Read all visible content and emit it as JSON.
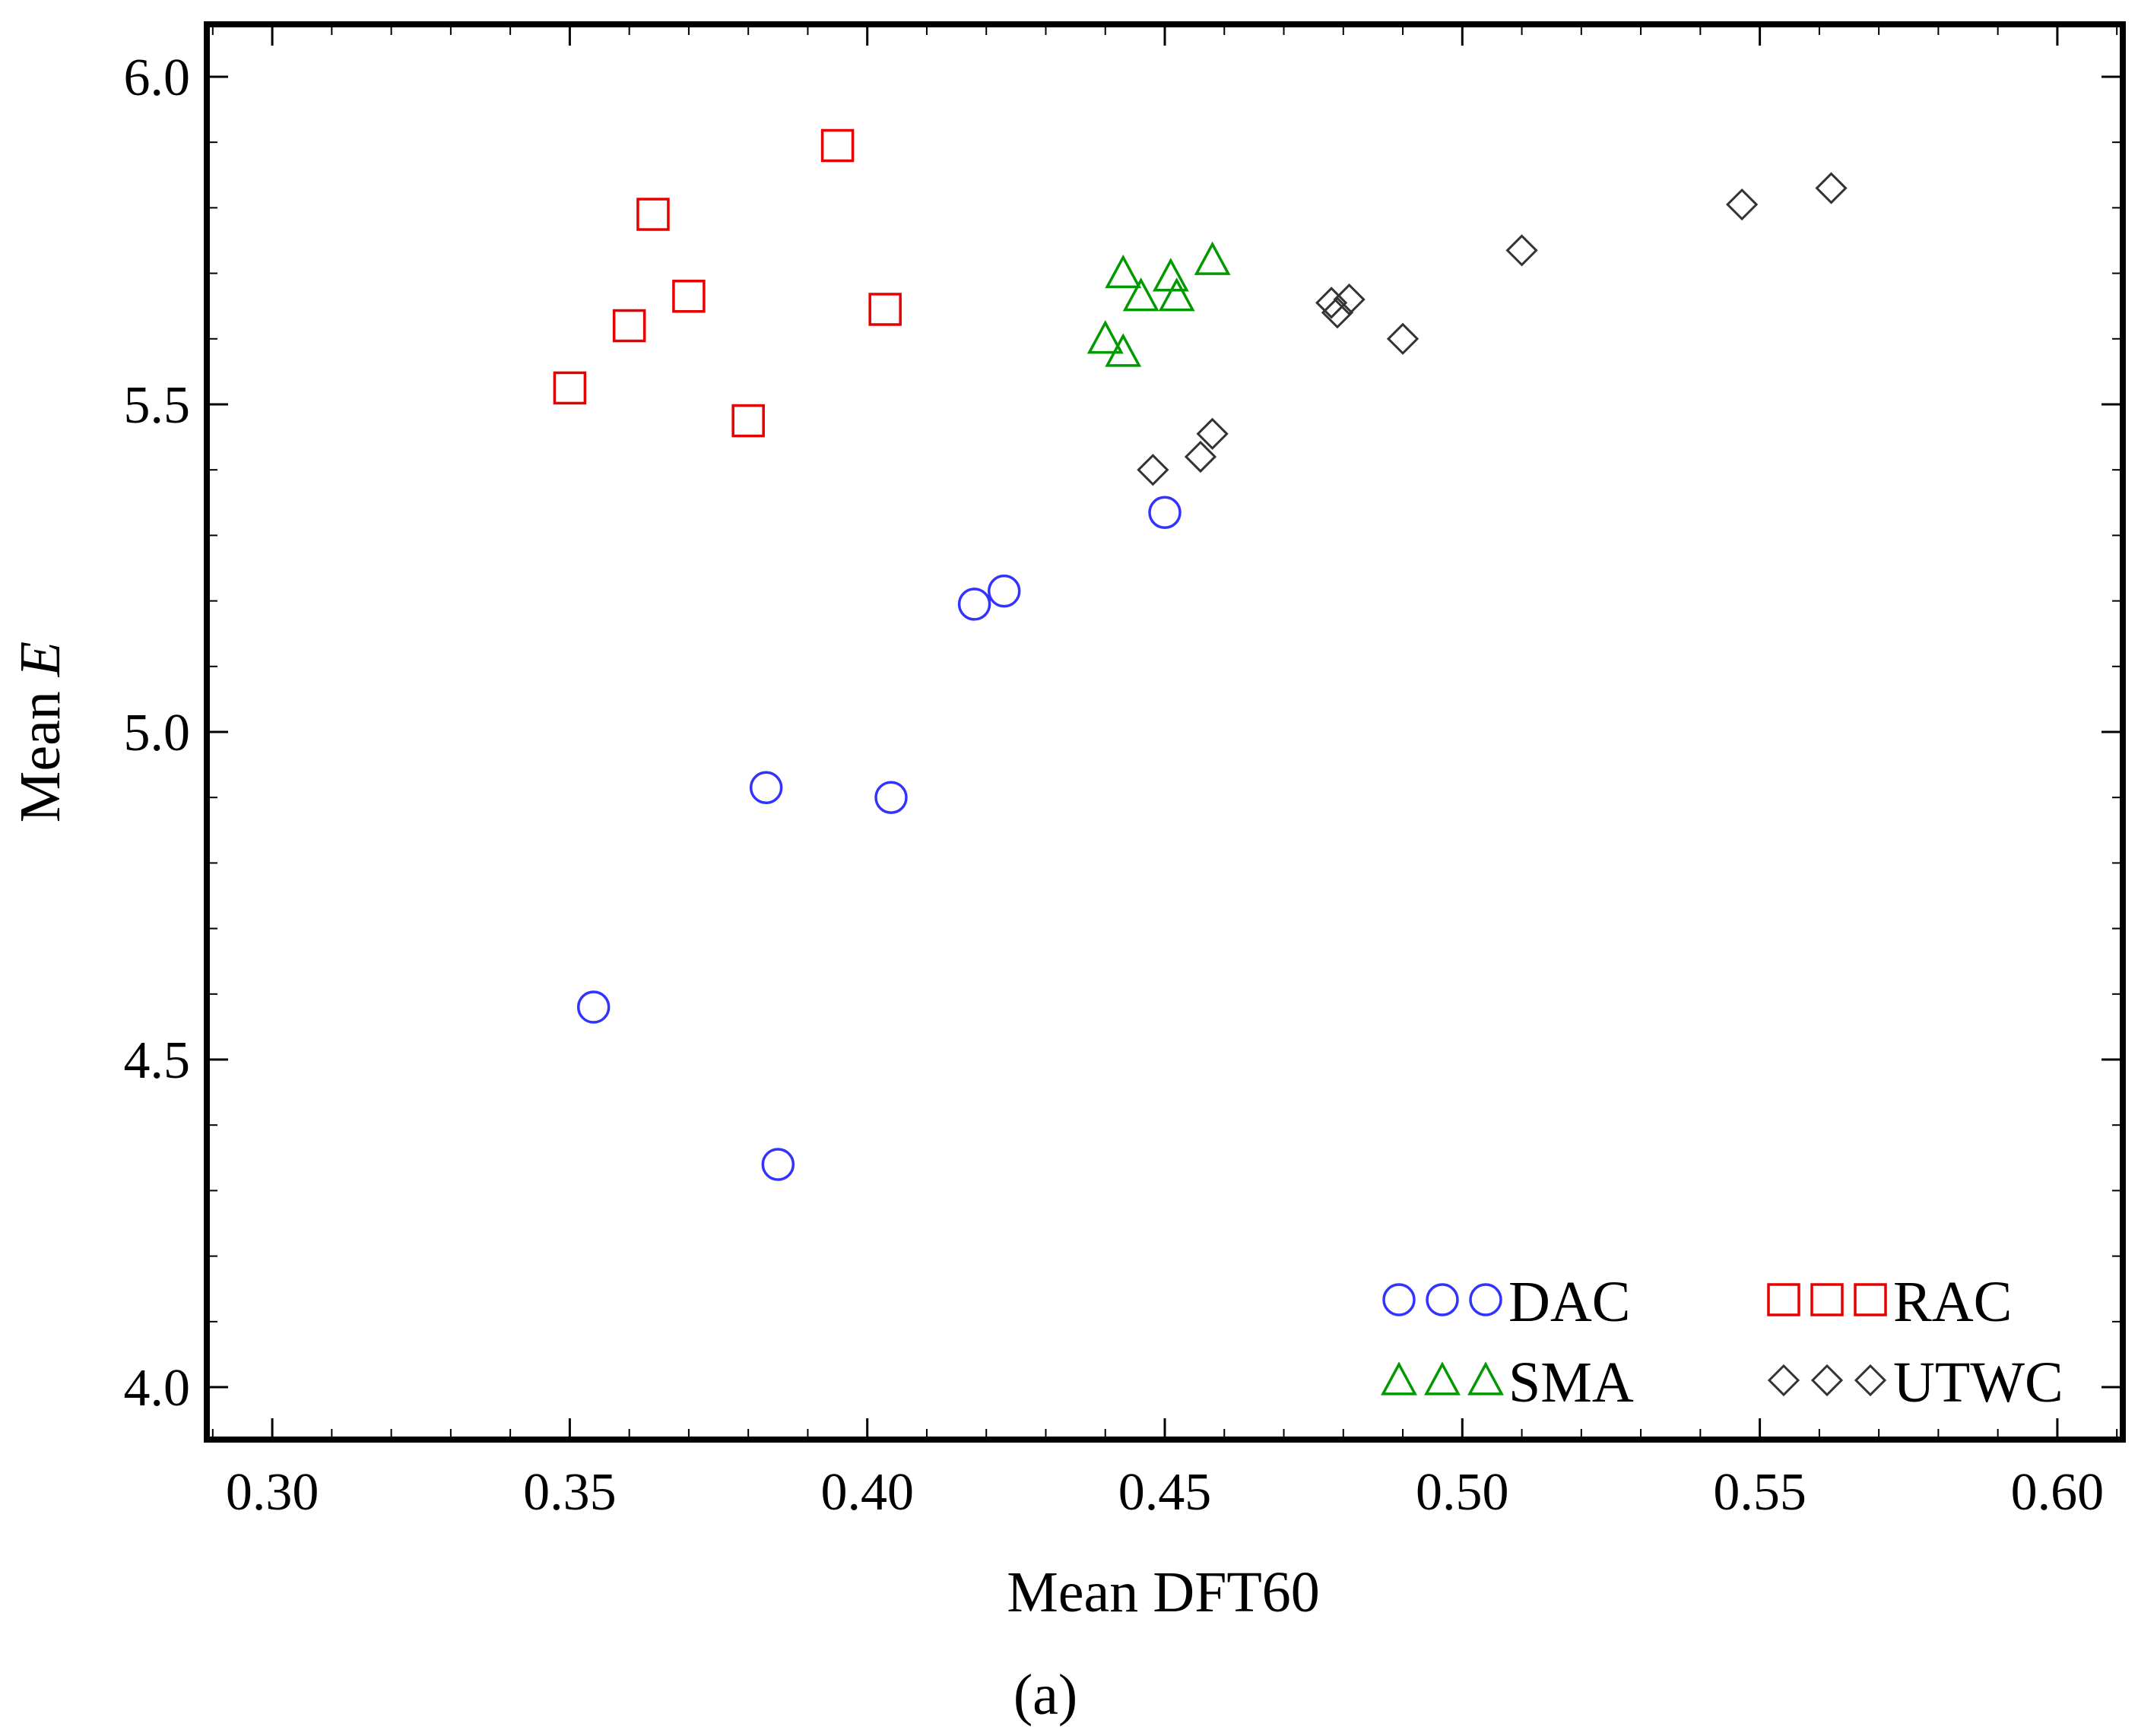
{
  "chart_data": {
    "type": "scatter",
    "title": "",
    "xlabel": "Mean DFT60",
    "ylabel": {
      "prefix": "Mean ",
      "var": "E"
    },
    "caption": "(a)",
    "xlim": [
      0.289,
      0.611
    ],
    "ylim": [
      3.92,
      6.08
    ],
    "xticks": [
      {
        "v": 0.3,
        "label": "0.30"
      },
      {
        "v": 0.35,
        "label": "0.35"
      },
      {
        "v": 0.4,
        "label": "0.40"
      },
      {
        "v": 0.45,
        "label": "0.45"
      },
      {
        "v": 0.5,
        "label": "0.50"
      },
      {
        "v": 0.55,
        "label": "0.55"
      },
      {
        "v": 0.6,
        "label": "0.60"
      }
    ],
    "yticks": [
      {
        "v": 4.0,
        "label": "4.0"
      },
      {
        "v": 4.5,
        "label": "4.5"
      },
      {
        "v": 5.0,
        "label": "5.0"
      },
      {
        "v": 5.5,
        "label": "5.5"
      },
      {
        "v": 6.0,
        "label": "6.0"
      }
    ],
    "x_minor_step": 0.01,
    "y_minor_step": 0.1,
    "grid": false,
    "legend_position": "bottom-right",
    "series": [
      {
        "name": "DAC",
        "marker": "circle",
        "color": "#3333ff",
        "points": [
          [
            0.354,
            4.58
          ],
          [
            0.385,
            4.34
          ],
          [
            0.383,
            4.915
          ],
          [
            0.404,
            4.9
          ],
          [
            0.418,
            5.195
          ],
          [
            0.423,
            5.215
          ],
          [
            0.45,
            5.335
          ]
        ]
      },
      {
        "name": "RAC",
        "marker": "square",
        "color": "#e60000",
        "points": [
          [
            0.35,
            5.525
          ],
          [
            0.36,
            5.62
          ],
          [
            0.364,
            5.79
          ],
          [
            0.37,
            5.665
          ],
          [
            0.38,
            5.475
          ],
          [
            0.395,
            5.895
          ],
          [
            0.403,
            5.645
          ]
        ]
      },
      {
        "name": "SMA",
        "marker": "triangle",
        "color": "#009900",
        "points": [
          [
            0.44,
            5.6
          ],
          [
            0.443,
            5.58
          ],
          [
            0.443,
            5.7
          ],
          [
            0.446,
            5.665
          ],
          [
            0.451,
            5.695
          ],
          [
            0.452,
            5.665
          ],
          [
            0.458,
            5.72
          ]
        ]
      },
      {
        "name": "UTWC",
        "marker": "diamond",
        "color": "#333333",
        "points": [
          [
            0.448,
            5.4
          ],
          [
            0.456,
            5.42
          ],
          [
            0.458,
            5.455
          ],
          [
            0.478,
            5.655
          ],
          [
            0.479,
            5.64
          ],
          [
            0.481,
            5.66
          ],
          [
            0.49,
            5.6
          ],
          [
            0.51,
            5.735
          ],
          [
            0.547,
            5.805
          ],
          [
            0.562,
            5.83
          ]
        ]
      }
    ]
  }
}
